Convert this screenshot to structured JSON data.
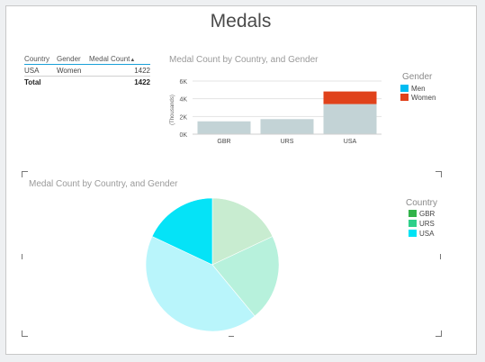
{
  "page": {
    "title": "Medals"
  },
  "table": {
    "headers": {
      "country": "Country",
      "gender": "Gender",
      "medal_count": "Medal Count"
    },
    "sort_indicator": "▲",
    "rows": [
      {
        "country": "USA",
        "gender": "Women",
        "medal_count": "1422"
      }
    ],
    "total": {
      "label": "Total",
      "value": "1422"
    }
  },
  "chart_data": [
    {
      "type": "bar",
      "stacked": true,
      "title": "Medal Count by Country, and Gender",
      "ylabel": "(Thousands)",
      "categories": [
        "GBR",
        "URS",
        "USA"
      ],
      "ylim": [
        0,
        6000
      ],
      "yticks": [
        "0K",
        "2K",
        "4K",
        "6K"
      ],
      "legend_title": "Gender",
      "legend_position": "right",
      "grid": true,
      "series": [
        {
          "name": "Men",
          "color": "#c3d3d6",
          "values": [
            1450,
            1700,
            3400
          ]
        },
        {
          "name": "Women",
          "color": "#e0421b",
          "values": [
            0,
            0,
            1422
          ]
        }
      ]
    },
    {
      "type": "pie",
      "title": "Medal Count by Country, and Gender",
      "legend_title": "Country",
      "legend_position": "right",
      "slices": [
        {
          "name": "GBR",
          "legend_color": "#31b34a",
          "fill": "#c8ecd0",
          "value": 18
        },
        {
          "name": "URS",
          "legend_color": "#2ed08a",
          "fill": "#b7f1dc",
          "value": 21
        },
        {
          "name": "USA",
          "legend_color": "#00e3f4",
          "fill": "#b9f5fb",
          "value": 43
        },
        {
          "name": "",
          "legend_color": "#00e3f4",
          "fill": "#05e3f7",
          "value": 18
        }
      ]
    }
  ]
}
